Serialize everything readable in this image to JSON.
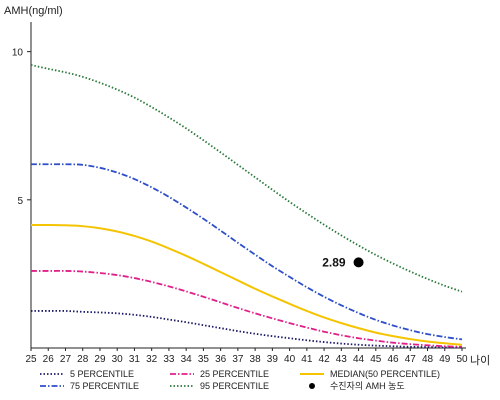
{
  "chart_data": {
    "type": "line",
    "title": "",
    "ylabel": "AMH(ng/ml)",
    "xlabel": "나이",
    "x": [
      25,
      26,
      27,
      28,
      29,
      30,
      31,
      32,
      33,
      34,
      35,
      36,
      37,
      38,
      39,
      40,
      41,
      42,
      43,
      44,
      45,
      46,
      47,
      48,
      49,
      50
    ],
    "xlim": [
      25,
      50
    ],
    "ylim": [
      0,
      11
    ],
    "yticks": [
      5,
      10
    ],
    "grid": false,
    "legend_position": "bottom",
    "series": [
      {
        "name": "5 PERCENTILE",
        "color": "#1a1a66",
        "dash": "dotted",
        "values": [
          1.25,
          1.25,
          1.25,
          1.22,
          1.2,
          1.17,
          1.12,
          1.05,
          0.96,
          0.87,
          0.77,
          0.67,
          0.57,
          0.48,
          0.4,
          0.33,
          0.26,
          0.2,
          0.15,
          0.11,
          0.08,
          0.06,
          0.04,
          0.03,
          0.02,
          0.01
        ]
      },
      {
        "name": "25 PERCENTILE",
        "color": "#e0208a",
        "dash": "dashdot",
        "values": [
          2.6,
          2.6,
          2.6,
          2.58,
          2.53,
          2.46,
          2.36,
          2.23,
          2.08,
          1.91,
          1.73,
          1.54,
          1.35,
          1.17,
          1.0,
          0.84,
          0.69,
          0.55,
          0.43,
          0.33,
          0.25,
          0.18,
          0.13,
          0.09,
          0.06,
          0.04
        ]
      },
      {
        "name": "MEDIAN(50 PERCENTILE)",
        "color": "#f5c400",
        "dash": "solid",
        "values": [
          4.15,
          4.15,
          4.14,
          4.11,
          4.04,
          3.93,
          3.78,
          3.59,
          3.36,
          3.11,
          2.84,
          2.56,
          2.28,
          2.0,
          1.74,
          1.49,
          1.25,
          1.03,
          0.84,
          0.67,
          0.52,
          0.4,
          0.3,
          0.22,
          0.16,
          0.11
        ]
      },
      {
        "name": "75 PERCENTILE",
        "color": "#2e4fc9",
        "dash": "dashdot",
        "values": [
          6.2,
          6.2,
          6.2,
          6.18,
          6.08,
          5.92,
          5.7,
          5.42,
          5.1,
          4.74,
          4.36,
          3.96,
          3.55,
          3.15,
          2.76,
          2.4,
          2.05,
          1.73,
          1.44,
          1.18,
          0.95,
          0.76,
          0.6,
          0.47,
          0.37,
          0.29
        ]
      },
      {
        "name": "95 PERCENTILE",
        "color": "#2a7a3a",
        "dash": "dotted",
        "values": [
          9.55,
          9.42,
          9.3,
          9.15,
          8.95,
          8.72,
          8.45,
          8.13,
          7.78,
          7.41,
          7.01,
          6.6,
          6.18,
          5.76,
          5.34,
          4.93,
          4.54,
          4.16,
          3.8,
          3.46,
          3.14,
          2.85,
          2.58,
          2.33,
          2.1,
          1.9
        ]
      }
    ],
    "patient": {
      "label": "수진자의 AMH 농도",
      "x": 44,
      "y": 2.89,
      "value_label": "2.89"
    },
    "legend": [
      {
        "label": "5 PERCENTILE",
        "series": 0
      },
      {
        "label": "25 PERCENTILE",
        "series": 1
      },
      {
        "label": "MEDIAN(50 PERCENTILE)",
        "series": 2
      },
      {
        "label": "75 PERCENTILE",
        "series": 3
      },
      {
        "label": "95 PERCENTILE",
        "series": 4
      },
      {
        "label": "수진자의 AMH 농도",
        "marker": "dot"
      }
    ]
  }
}
